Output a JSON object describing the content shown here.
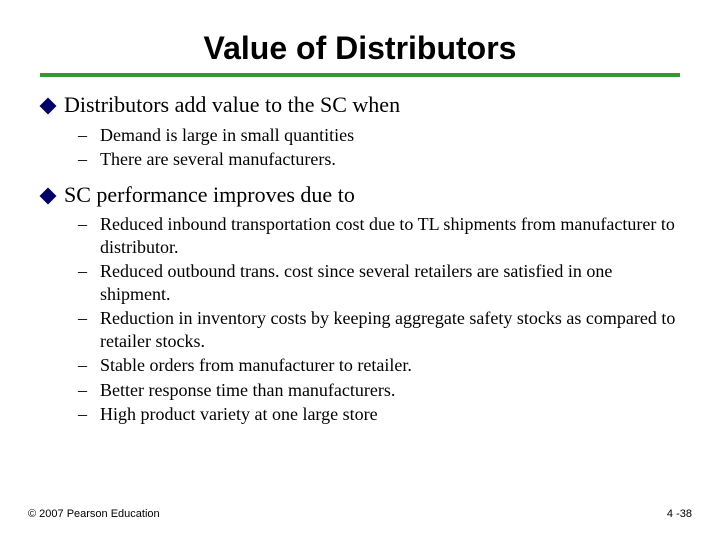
{
  "title": "Value of Distributors",
  "accent_color": "#339933",
  "diamond_color": "#000066",
  "bullets": [
    {
      "text": "Distributors add value to the SC when",
      "subitems": [
        "Demand is large in small quantities",
        "There are several manufacturers."
      ]
    },
    {
      "text": "SC performance improves due to",
      "subitems": [
        "Reduced inbound transportation cost due to TL shipments from manufacturer to distributor.",
        "Reduced outbound trans. cost since several retailers are satisfied in one shipment.",
        "Reduction in inventory costs by keeping aggregate safety stocks as compared to retailer stocks.",
        "Stable orders from manufacturer to retailer.",
        "Better response time than manufacturers.",
        "High product variety at one large store"
      ]
    }
  ],
  "footer_left": "© 2007 Pearson Education",
  "footer_right": "4 -38"
}
